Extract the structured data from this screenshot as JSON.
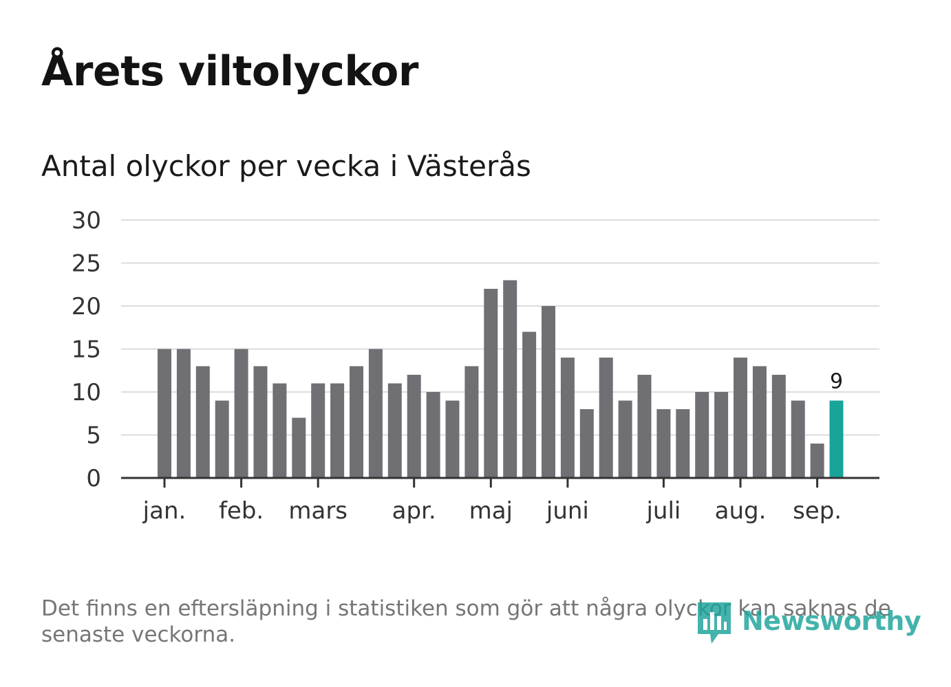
{
  "header": {
    "title": "Årets viltolyckor",
    "subtitle": "Antal olyckor per vecka i Västerås"
  },
  "colors": {
    "bar": "#6f6f74",
    "highlight_bar": "#18a499",
    "grid": "#dcdcdc",
    "axis": "#333333",
    "brand": "#1aa39a"
  },
  "chart_data": {
    "type": "bar",
    "title": "",
    "xlabel": "",
    "ylabel": "",
    "ylim": [
      0,
      30
    ],
    "yticks": [
      "0",
      "5",
      "10",
      "15",
      "20",
      "25",
      "30"
    ],
    "grid": true,
    "week_values": [
      15,
      15,
      13,
      9,
      15,
      13,
      11,
      7,
      11,
      11,
      13,
      15,
      11,
      12,
      10,
      9,
      13,
      22,
      23,
      17,
      20,
      14,
      8,
      14,
      9,
      12,
      8,
      8,
      10,
      10,
      14,
      13,
      12,
      9,
      4,
      9
    ],
    "highlighted_index": 35,
    "data_labels": [
      {
        "index": 35,
        "text": "9"
      }
    ],
    "month_ticks": [
      {
        "label": "jan.",
        "week": 1
      },
      {
        "label": "feb.",
        "week": 5
      },
      {
        "label": "mars",
        "week": 9
      },
      {
        "label": "apr.",
        "week": 14
      },
      {
        "label": "maj",
        "week": 18
      },
      {
        "label": "juni",
        "week": 22
      },
      {
        "label": "juli",
        "week": 27
      },
      {
        "label": "aug.",
        "week": 31
      },
      {
        "label": "sep.",
        "week": 35
      }
    ]
  },
  "footer": {
    "note": "Det finns en eftersläpning i statistiken som gör att några olyckor kan saknas de senaste veckorna.",
    "brand": "Newsworthy",
    "brand_icon": "newsworthy-logo-icon"
  }
}
